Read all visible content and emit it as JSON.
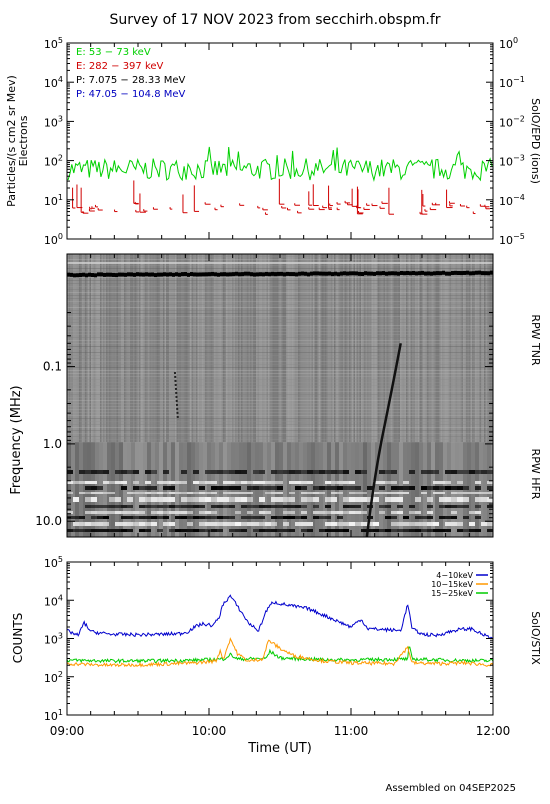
{
  "title": "Survey of 17 NOV 2023 from secchirh.obspm.fr",
  "footer": "Assembled on 04SEP2025",
  "colors": {
    "electrons_low": "#00d000",
    "electrons_high": "#d00000",
    "protons_low": "#000000",
    "protons_high": "#0000c0",
    "stix_low": "#0000cc",
    "stix_mid": "#ff9900",
    "stix_high": "#00cc00"
  },
  "chart_data": [
    {
      "id": "epd",
      "type": "line",
      "ylabel_left_line1": "Particles/(s cm2 sr Mev)",
      "ylabel_left_line2": "Electrons",
      "ylabel_right": "SolO/EPD (ions)",
      "y_scale": "log",
      "ylim": [
        1,
        100000
      ],
      "yticks_left": [
        {
          "base": "10",
          "exp": "0"
        },
        {
          "base": "10",
          "exp": "1"
        },
        {
          "base": "10",
          "exp": "2"
        },
        {
          "base": "10",
          "exp": "3"
        },
        {
          "base": "10",
          "exp": "4"
        },
        {
          "base": "10",
          "exp": "5"
        }
      ],
      "yticks_right": [
        {
          "base": "10",
          "exp": "−5"
        },
        {
          "base": "10",
          "exp": "−4"
        },
        {
          "base": "10",
          "exp": "−3"
        },
        {
          "base": "10",
          "exp": "−2"
        },
        {
          "base": "10",
          "exp": "−1"
        },
        {
          "base": "10",
          "exp": "0"
        }
      ],
      "legend_position": "top-left",
      "series": [
        {
          "name": "E: 53 − 73 keV",
          "color_key": "electrons_low",
          "level": 60
        },
        {
          "name": "E: 282 − 397 keV",
          "color_key": "electrons_high",
          "level": 6
        },
        {
          "name": "P: 7.075 − 28.33 MeV",
          "color_key": "protons_low"
        },
        {
          "name": "P: 47.05 − 104.8 MeV",
          "color_key": "protons_high"
        }
      ]
    },
    {
      "id": "rpw",
      "type": "heatmap",
      "ylabel_left": "Frequency (MHz)",
      "ylabel_right_top": "RPW TNR",
      "ylabel_right_bottom": "RPW HFR",
      "y_scale": "log",
      "y_inverted": true,
      "ylim": [
        0.0035,
        16
      ],
      "yticks": [
        {
          "value": 0.1,
          "label": "0.1"
        },
        {
          "value": 1.0,
          "label": "1.0"
        },
        {
          "value": 10.0,
          "label": "10.0"
        }
      ],
      "tnr_hfr_boundary_mhz": 0.95,
      "radio_burst": {
        "start_time_h": 11.1,
        "end_time_h": 11.35,
        "start_freq_mhz": 10,
        "end_freq_mhz": 0.05
      }
    },
    {
      "id": "stix",
      "type": "line",
      "ylabel_left": "COUNTS",
      "ylabel_right": "SolO/STIX",
      "xlabel": "Time (UT)",
      "y_scale": "log",
      "ylim": [
        10,
        100000
      ],
      "yticks": [
        {
          "base": "10",
          "exp": "1"
        },
        {
          "base": "10",
          "exp": "2"
        },
        {
          "base": "10",
          "exp": "3"
        },
        {
          "base": "10",
          "exp": "4"
        },
        {
          "base": "10",
          "exp": "5"
        }
      ],
      "x_range_h": [
        9,
        12
      ],
      "xticks": [
        {
          "value": 9,
          "label": "09:00"
        },
        {
          "value": 10,
          "label": "10:00"
        },
        {
          "value": 11,
          "label": "11:00"
        },
        {
          "value": 12,
          "label": "12:00"
        }
      ],
      "legend_position": "top-right",
      "series": [
        {
          "name": "4−10keV",
          "color_key": "stix_low",
          "points": [
            [
              9.0,
              1600
            ],
            [
              9.08,
              1200
            ],
            [
              9.12,
              2600
            ],
            [
              9.17,
              1500
            ],
            [
              9.3,
              1300
            ],
            [
              9.5,
              1250
            ],
            [
              9.7,
              1300
            ],
            [
              9.8,
              1350
            ],
            [
              9.85,
              1500
            ],
            [
              9.9,
              2000
            ],
            [
              9.95,
              2400
            ],
            [
              10.03,
              2200
            ],
            [
              10.07,
              3500
            ],
            [
              10.1,
              8000
            ],
            [
              10.15,
              13000
            ],
            [
              10.2,
              7000
            ],
            [
              10.28,
              2500
            ],
            [
              10.35,
              1600
            ],
            [
              10.4,
              5000
            ],
            [
              10.45,
              9000
            ],
            [
              10.55,
              7500
            ],
            [
              10.7,
              6000
            ],
            [
              10.85,
              3500
            ],
            [
              11.0,
              2000
            ],
            [
              11.07,
              3200
            ],
            [
              11.12,
              1800
            ],
            [
              11.25,
              1700
            ],
            [
              11.35,
              1600
            ],
            [
              11.4,
              8000
            ],
            [
              11.43,
              1800
            ],
            [
              11.5,
              1300
            ],
            [
              11.6,
              1200
            ],
            [
              11.75,
              1700
            ],
            [
              11.85,
              1800
            ],
            [
              11.92,
              1300
            ],
            [
              12.0,
              1000
            ]
          ]
        },
        {
          "name": "10−15keV",
          "color_key": "stix_mid",
          "points": [
            [
              9.0,
              220
            ],
            [
              9.3,
              200
            ],
            [
              9.6,
              210
            ],
            [
              9.9,
              230
            ],
            [
              10.05,
              260
            ],
            [
              10.08,
              500
            ],
            [
              10.1,
              280
            ],
            [
              10.15,
              1000
            ],
            [
              10.2,
              400
            ],
            [
              10.28,
              250
            ],
            [
              10.38,
              300
            ],
            [
              10.42,
              900
            ],
            [
              10.5,
              550
            ],
            [
              10.6,
              350
            ],
            [
              10.8,
              260
            ],
            [
              11.0,
              230
            ],
            [
              11.3,
              220
            ],
            [
              11.4,
              600
            ],
            [
              11.43,
              230
            ],
            [
              11.6,
              220
            ],
            [
              11.8,
              230
            ],
            [
              12.0,
              200
            ]
          ]
        },
        {
          "name": "15−25keV",
          "color_key": "stix_high",
          "points": [
            [
              9.0,
              270
            ],
            [
              9.3,
              260
            ],
            [
              9.6,
              260
            ],
            [
              9.9,
              270
            ],
            [
              10.1,
              290
            ],
            [
              10.15,
              380
            ],
            [
              10.2,
              290
            ],
            [
              10.4,
              300
            ],
            [
              10.43,
              460
            ],
            [
              10.5,
              310
            ],
            [
              10.8,
              280
            ],
            [
              11.0,
              275
            ],
            [
              11.4,
              290
            ],
            [
              11.41,
              700
            ],
            [
              11.43,
              290
            ],
            [
              11.7,
              270
            ],
            [
              12.0,
              260
            ]
          ]
        }
      ]
    }
  ]
}
